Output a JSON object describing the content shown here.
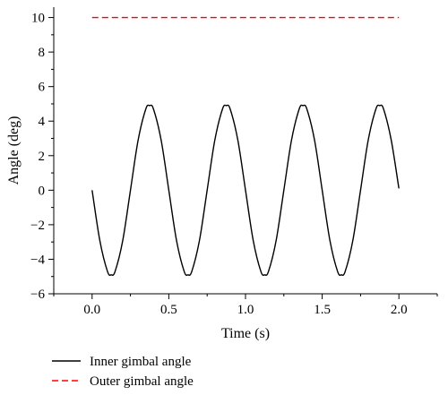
{
  "chart_data": {
    "type": "line",
    "title": "",
    "xlabel": "Time (s)",
    "ylabel": "Angle (deg)",
    "xlim": [
      -0.25,
      2.25
    ],
    "ylim": [
      -6,
      10.6
    ],
    "x_ticks": [
      0.0,
      0.5,
      1.0,
      1.5,
      2.0
    ],
    "x_tick_labels": [
      "0.0",
      "0.5",
      "1.0",
      "1.5",
      "2.0"
    ],
    "y_ticks": [
      -6,
      -4,
      -2,
      0,
      2,
      4,
      6,
      8,
      10
    ],
    "y_tick_labels": [
      "−6",
      "−4",
      "−2",
      "0",
      "2",
      "4",
      "6",
      "8",
      "10"
    ],
    "grid": false,
    "legend_position": "bottom-left, below plot",
    "series": [
      {
        "name": "Inner gimbal angle",
        "color": "#000000",
        "style": "solid",
        "x": [
          0.0,
          0.05,
          0.1,
          0.125,
          0.15,
          0.2,
          0.25,
          0.3,
          0.35,
          0.375,
          0.4,
          0.45,
          0.5,
          0.55,
          0.6,
          0.625,
          0.65,
          0.7,
          0.75,
          0.8,
          0.85,
          0.875,
          0.9,
          0.95,
          1.0,
          1.05,
          1.1,
          1.125,
          1.15,
          1.2,
          1.25,
          1.3,
          1.35,
          1.375,
          1.4,
          1.45,
          1.5,
          1.55,
          1.6,
          1.625,
          1.65,
          1.7,
          1.75,
          1.8,
          1.85,
          1.875,
          1.9,
          1.95,
          2.0
        ],
        "y": [
          0.0,
          -2.9,
          -4.7,
          -4.9,
          -4.7,
          -2.9,
          0.0,
          2.9,
          4.7,
          4.9,
          4.7,
          2.9,
          0.0,
          -2.9,
          -4.7,
          -4.9,
          -4.7,
          -2.9,
          0.0,
          2.9,
          4.7,
          4.9,
          4.7,
          2.9,
          0.0,
          -2.9,
          -4.7,
          -4.9,
          -4.7,
          -2.9,
          0.0,
          2.9,
          4.7,
          4.9,
          4.7,
          2.9,
          0.0,
          -2.9,
          -4.7,
          -4.9,
          -4.7,
          -2.9,
          0.0,
          2.9,
          4.7,
          4.9,
          4.7,
          2.9,
          0.1
        ]
      },
      {
        "name": "Outer gimbal angle",
        "color": "#ff0000",
        "style": "dashed",
        "x": [
          0.0,
          2.0
        ],
        "y": [
          10.0,
          10.0
        ]
      }
    ]
  }
}
